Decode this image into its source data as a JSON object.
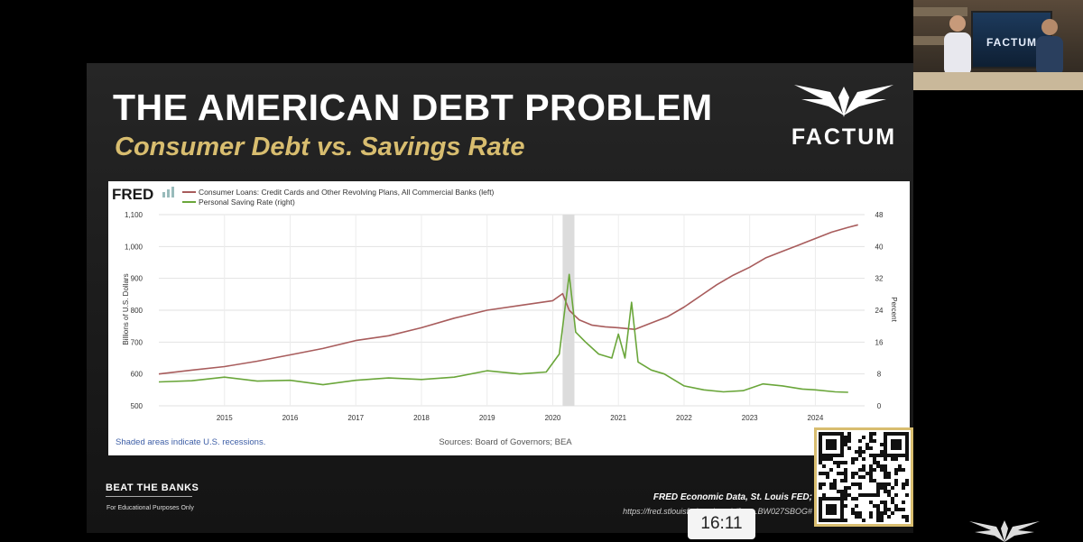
{
  "slide": {
    "title": "THE AMERICAN DEBT PROBLEM",
    "subtitle": "Consumer Debt vs. Savings Rate",
    "brand": "FACTUM",
    "footer_brand": "BEAT THE BANKS",
    "footer_disclaimer": "For Educational Purposes Only",
    "footer_source": "FRED Economic Data, St. Louis FED;",
    "footer_url": "https://fred.stlouisfed.org/graph/?g=...BW027SBOG#",
    "timer": "16:11",
    "webcam_screen_text": "FACTUM"
  },
  "chart_data": {
    "type": "line",
    "fred_logo": "FRED",
    "series": [
      {
        "name": "Consumer Loans: Credit Cards and Other Revolving Plans, All Commercial Banks (left)",
        "axis": "left",
        "color": "#a85c5c",
        "x": [
          2014.0,
          2014.5,
          2015.0,
          2015.5,
          2016.0,
          2016.5,
          2017.0,
          2017.5,
          2018.0,
          2018.5,
          2019.0,
          2019.5,
          2020.0,
          2020.15,
          2020.25,
          2020.4,
          2020.6,
          2020.8,
          2021.0,
          2021.25,
          2021.5,
          2021.75,
          2022.0,
          2022.25,
          2022.5,
          2022.75,
          2023.0,
          2023.25,
          2023.5,
          2023.75,
          2024.0,
          2024.25,
          2024.5,
          2024.65
        ],
        "y": [
          600,
          612,
          623,
          640,
          660,
          680,
          705,
          720,
          745,
          775,
          800,
          815,
          830,
          852,
          800,
          770,
          753,
          748,
          745,
          740,
          760,
          780,
          810,
          845,
          880,
          910,
          935,
          965,
          985,
          1005,
          1025,
          1045,
          1060,
          1068
        ]
      },
      {
        "name": "Personal Saving Rate (right)",
        "axis": "right",
        "color": "#6aa63a",
        "x": [
          2014.0,
          2014.5,
          2015.0,
          2015.5,
          2016.0,
          2016.5,
          2017.0,
          2017.5,
          2018.0,
          2018.5,
          2019.0,
          2019.5,
          2019.9,
          2020.1,
          2020.25,
          2020.35,
          2020.5,
          2020.7,
          2020.9,
          2021.0,
          2021.1,
          2021.2,
          2021.3,
          2021.5,
          2021.7,
          2022.0,
          2022.3,
          2022.6,
          2022.9,
          2023.2,
          2023.5,
          2023.8,
          2024.0,
          2024.3,
          2024.5
        ],
        "y": [
          6.0,
          6.3,
          7.2,
          6.2,
          6.4,
          5.3,
          6.4,
          7.0,
          6.6,
          7.2,
          8.8,
          8.0,
          8.5,
          13.0,
          33.0,
          18.5,
          16.0,
          13.0,
          12.0,
          18.0,
          12.0,
          26.0,
          11.0,
          9.0,
          8.0,
          5.0,
          4.0,
          3.5,
          3.8,
          5.5,
          5.0,
          4.2,
          4.0,
          3.5,
          3.4
        ]
      }
    ],
    "recession": [
      2020.15,
      2020.33
    ],
    "x_ticks": [
      "2015",
      "2016",
      "2017",
      "2018",
      "2019",
      "2020",
      "2021",
      "2022",
      "2023",
      "2024"
    ],
    "x_tick_values": [
      2015,
      2016,
      2017,
      2018,
      2019,
      2020,
      2021,
      2022,
      2023,
      2024
    ],
    "xlim": [
      2014.0,
      2024.75
    ],
    "left_axis": {
      "label": "Billions of U.S. Dollars",
      "ticks": [
        "500",
        "600",
        "700",
        "800",
        "900",
        "1,000",
        "1,100"
      ],
      "tick_values": [
        500,
        600,
        700,
        800,
        900,
        1000,
        1100
      ],
      "ylim": [
        500,
        1100
      ]
    },
    "right_axis": {
      "label": "Percent",
      "ticks": [
        "0",
        "8",
        "16",
        "24",
        "32",
        "40",
        "48"
      ],
      "tick_values": [
        0,
        8,
        16,
        24,
        32,
        40,
        48
      ],
      "ylim": [
        0,
        48
      ]
    },
    "grid": true,
    "legend": "top-left",
    "note": "Shaded areas indicate U.S. recessions.",
    "source": "Sources: Board of Governors; BEA"
  }
}
